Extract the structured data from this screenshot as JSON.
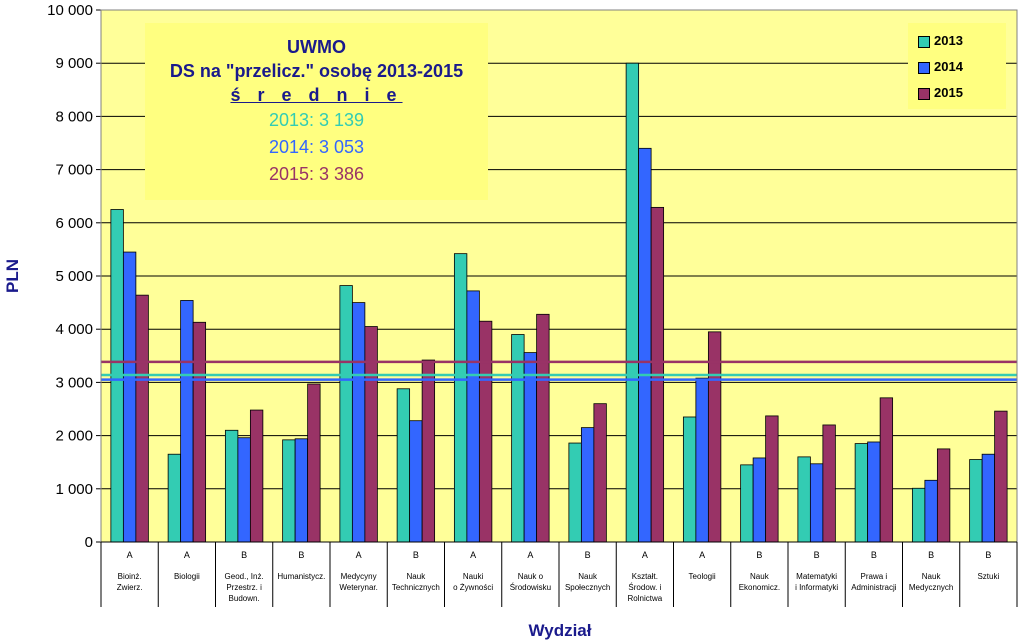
{
  "colors": {
    "plot_bg": "#ffff99",
    "s2013": "#33ccb3",
    "s2014": "#3366ff",
    "s2015": "#993366",
    "title": "#1a1a8c"
  },
  "info_box": {
    "line1": "UWMO",
    "line2": "DS na \"przelicz.\" osobę 2013-2015",
    "line3": "ś r e d n i e",
    "avg2013": "2013:  3 139",
    "avg2014": "2014:  3 053",
    "avg2015": "2015:  3 386"
  },
  "chart_data": {
    "type": "bar",
    "xlabel": "Wydział",
    "ylabel": "PLN",
    "ylim": [
      0,
      10000
    ],
    "yticks": [
      "0",
      "1 000",
      "2 000",
      "3 000",
      "4 000",
      "5 000",
      "6 000",
      "7 000",
      "8 000",
      "9 000",
      "10 000"
    ],
    "grid": true,
    "legend_position": "top-right",
    "groups": [
      "A",
      "A",
      "B",
      "B",
      "A",
      "B",
      "A",
      "A",
      "B",
      "A",
      "A",
      "B",
      "B",
      "B",
      "B",
      "B"
    ],
    "categories": [
      [
        "Bioinż.",
        "Zwierz."
      ],
      [
        "Biologii"
      ],
      [
        "Geod., Inż.",
        "Przestrz. i",
        "Budown."
      ],
      [
        "Humanistycz."
      ],
      [
        "Medycyny",
        "Weterynar."
      ],
      [
        "Nauk",
        "Technicznych"
      ],
      [
        "Nauki",
        "o Żywności"
      ],
      [
        "Nauk o",
        "Środowisku"
      ],
      [
        "Nauk",
        "Społecznych"
      ],
      [
        "Kształt.",
        "Środow. i",
        "Rolnictwa"
      ],
      [
        "Teologii"
      ],
      [
        "Nauk",
        "Ekonomicz."
      ],
      [
        "Matematyki",
        "i Informatyki"
      ],
      [
        "Prawa i",
        "Administracji"
      ],
      [
        "Nauk",
        "Medycznych"
      ],
      [
        "Sztuki"
      ]
    ],
    "series": [
      {
        "name": "2013",
        "values": [
          6250,
          1650,
          2100,
          1920,
          4820,
          2880,
          5420,
          3900,
          1860,
          9000,
          2350,
          1450,
          1600,
          1850,
          1010,
          1550
        ]
      },
      {
        "name": "2014",
        "values": [
          5450,
          4540,
          1960,
          1940,
          4500,
          2280,
          4720,
          3560,
          2150,
          7400,
          3080,
          1580,
          1470,
          1880,
          1160,
          1650
        ]
      },
      {
        "name": "2015",
        "values": [
          4640,
          4130,
          2480,
          2970,
          4050,
          3420,
          4150,
          4280,
          2600,
          6290,
          3950,
          2370,
          2200,
          2710,
          1750,
          2460
        ]
      }
    ],
    "average_lines": [
      {
        "name": "2013",
        "value": 3139
      },
      {
        "name": "2014",
        "value": 3053
      },
      {
        "name": "2015",
        "value": 3386
      }
    ]
  }
}
